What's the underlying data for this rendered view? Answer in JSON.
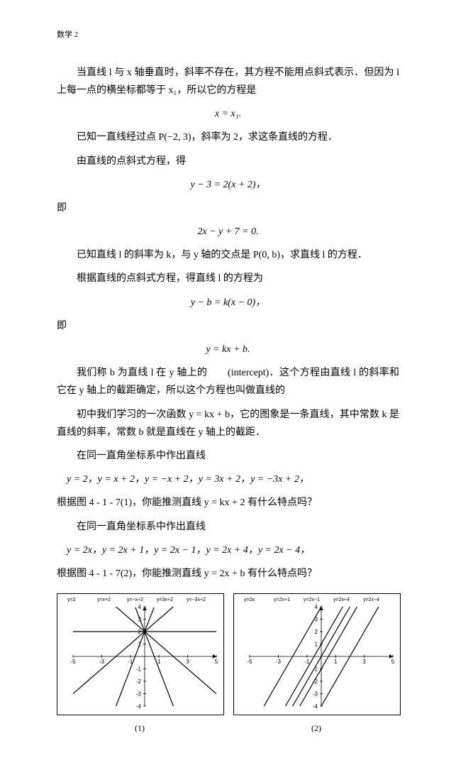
{
  "header": "数学 2",
  "p1": "当直线 l 与 x 轴垂直时，斜率不存在，其方程不能用点斜式表示．但因为 l 上每一点的横坐标都等于 x₁，所以它的方程是",
  "f1": "x = x₁.",
  "p2": "已知一直线经过点 P(−2, 3)，斜率为 2，求这条直线的方程．",
  "p3": "由直线的点斜式方程，得",
  "f2": "y − 3 = 2(x + 2)，",
  "p4": "即",
  "f3": "2x − y + 7 = 0.",
  "p5": "已知直线 l 的斜率为 k，与 y 轴的交点是 P(0, b)，求直线 l 的方程．",
  "p6": "根据直线的点斜式方程，得直线 l 的方程为",
  "f4": "y − b = k(x − 0)，",
  "p7": "即",
  "f5": "y = kx + b.",
  "p8": "我们称 b 为直线 l 在 y 轴上的　　(intercept)．这个方程由直线 l 的斜率和它在 y 轴上的截距确定，所以这个方程也叫做直线的",
  "p9": "初中我们学习的一次函数 y = kx + b，它的图象是一条直线，其中常数 k 是直线的斜率，常数 b 就是直线在 y 轴上的截距．",
  "p10": "在同一直角坐标系中作出直线",
  "p11": "y = 2，y = x + 2，y = −x + 2，y = 3x + 2，y = −3x + 2，",
  "p12": "根据图 4 - 1 - 7(1)，你能推测直线 y = kx + 2 有什么特点吗？",
  "p13": "在同一直角坐标系中作出直线",
  "p14": "y = 2x，y = 2x + 1，y = 2x − 1，y = 2x + 4，y = 2x − 4，",
  "p15": "根据图 4 - 1 - 7(2)，你能推测直线 y = 2x + b 有什么特点吗？",
  "chart1": {
    "xrange": [
      -5,
      5
    ],
    "yrange": [
      -4,
      4
    ],
    "xticks": [
      -5,
      -3,
      -1,
      1,
      3,
      5
    ],
    "yticks": [
      -4,
      -3,
      -2,
      -1,
      1,
      2,
      3,
      4
    ],
    "legends": [
      "y=2",
      "y=x+2",
      "y=−x+2",
      "y=3x+2",
      "y=−3x+2"
    ],
    "lines": [
      {
        "m": 0,
        "b": 2
      },
      {
        "m": 1,
        "b": 2
      },
      {
        "m": -1,
        "b": 2
      },
      {
        "m": 3,
        "b": 2
      },
      {
        "m": -3,
        "b": 2
      }
    ],
    "caption": "(1)"
  },
  "chart2": {
    "xrange": [
      -5,
      5
    ],
    "yrange": [
      -4,
      4
    ],
    "xticks": [
      -5,
      -3,
      -1,
      1,
      3,
      5
    ],
    "yticks": [
      -4,
      -3,
      -2,
      -1,
      1,
      2,
      3,
      4
    ],
    "legends": [
      "y=2x",
      "y=2x+1",
      "y=2x−1",
      "y=2x+4",
      "y=2x−4"
    ],
    "lines": [
      {
        "m": 2,
        "b": 0
      },
      {
        "m": 2,
        "b": 1
      },
      {
        "m": 2,
        "b": -1
      },
      {
        "m": 2,
        "b": 4
      },
      {
        "m": 2,
        "b": -4
      }
    ],
    "caption": "(2)"
  }
}
